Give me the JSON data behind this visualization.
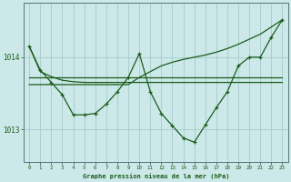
{
  "bg_color": "#cce8e8",
  "plot_bg_color": "#cce8e8",
  "grid_color": "#aacfcf",
  "line_color": "#1a5c1a",
  "hours": [
    0,
    1,
    2,
    3,
    4,
    5,
    6,
    7,
    8,
    9,
    10,
    11,
    12,
    13,
    14,
    15,
    16,
    17,
    18,
    19,
    20,
    21,
    22,
    23
  ],
  "pressure_main": [
    1014.15,
    1013.82,
    1013.65,
    1013.48,
    1013.2,
    1013.2,
    1013.22,
    1013.35,
    1013.52,
    1013.72,
    1014.05,
    1013.52,
    1013.22,
    1013.05,
    1012.88,
    1012.82,
    1013.06,
    1013.3,
    1013.52,
    1013.88,
    1014.0,
    1014.0,
    1014.28,
    1014.52
  ],
  "flat_line": [
    1013.72,
    1013.72,
    1013.72,
    1013.72,
    1013.72,
    1013.72,
    1013.72,
    1013.72,
    1013.72,
    1013.72,
    1013.72,
    1013.72,
    1013.72,
    1013.72,
    1013.72,
    1013.72,
    1013.72,
    1013.72,
    1013.72,
    1013.72,
    1013.72,
    1013.72,
    1013.72,
    1013.72
  ],
  "trend_from_high": [
    1014.15,
    1013.78,
    1013.73,
    1013.7,
    1013.68,
    1013.66,
    1013.65,
    1013.65,
    1013.65,
    1013.65,
    1013.65,
    1013.65,
    1013.65,
    1013.65,
    1013.65,
    1013.65,
    1013.65,
    1013.65,
    1013.65,
    1013.65,
    1013.65,
    1013.65,
    1013.65,
    1013.65
  ],
  "trend_rising": [
    1013.62,
    1013.62,
    1013.62,
    1013.62,
    1013.62,
    1013.62,
    1013.62,
    1013.62,
    1013.62,
    1013.62,
    1013.72,
    1013.78,
    1013.85,
    1013.9,
    1013.95,
    1013.98,
    1014.0,
    1014.02,
    1014.05,
    1014.1,
    1014.12,
    1014.15,
    1014.22,
    1014.52
  ],
  "ylim": [
    1012.55,
    1014.75
  ],
  "yticks": [
    1013,
    1014
  ],
  "xlabel": "Graphe pression niveau de la mer (hPa)"
}
